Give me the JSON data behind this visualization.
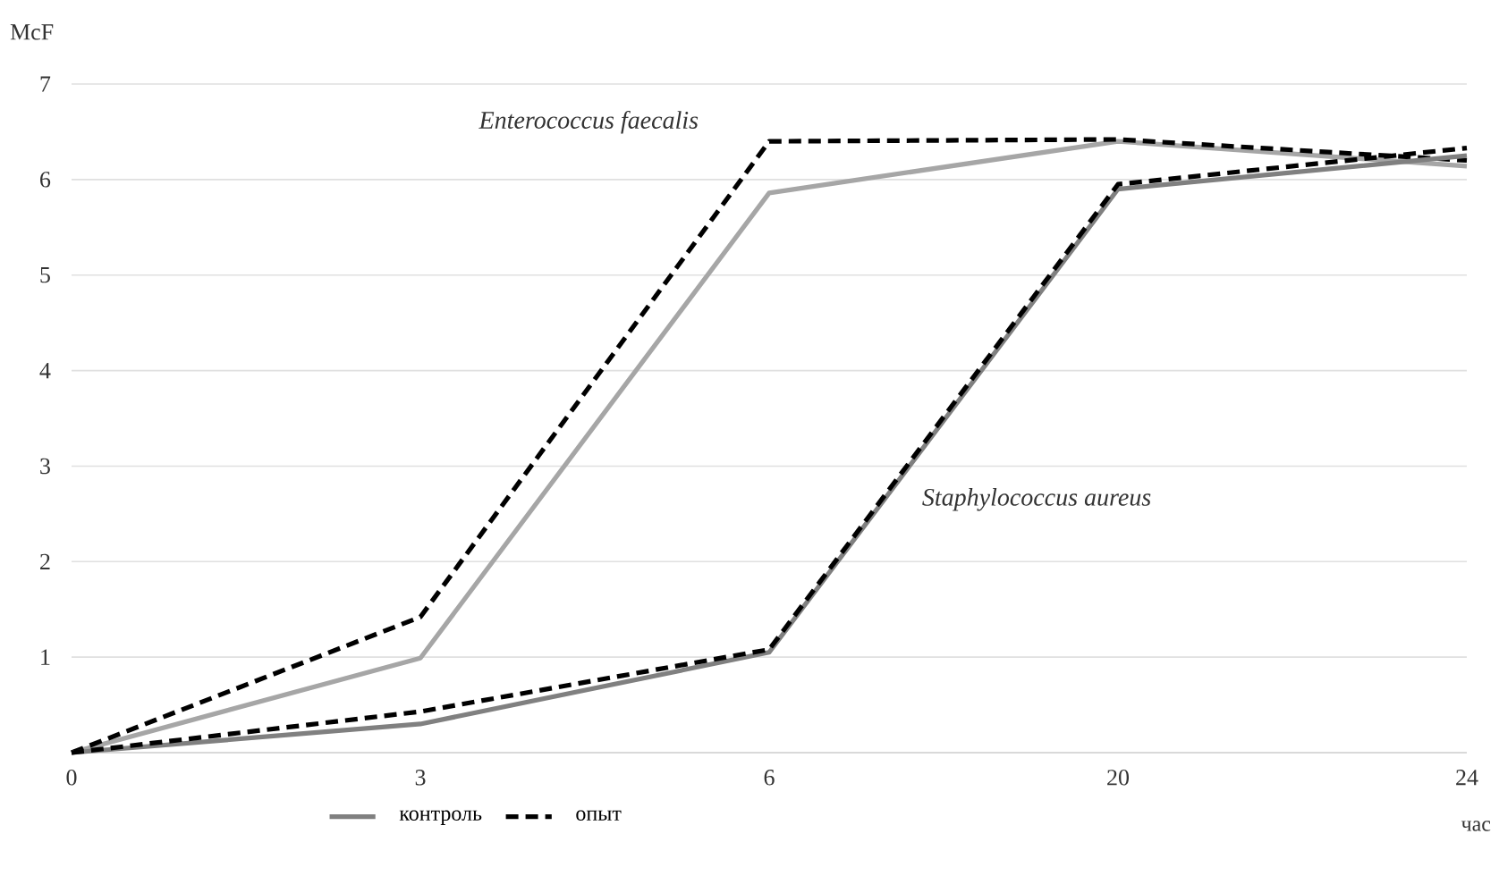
{
  "chart_data": {
    "type": "line",
    "xlabel": "час",
    "ylabel": "McF",
    "categories": [
      "0",
      "3",
      "6",
      "20",
      "24"
    ],
    "series": [
      {
        "color": "#a6a6a6",
        "line_style": "solid",
        "values": [
          0,
          0.99,
          5.86,
          6.4,
          6.14
        ]
      },
      {
        "color": "#000000",
        "line_style": "dashed",
        "values": [
          0,
          1.42,
          6.4,
          6.42,
          6.2
        ]
      },
      {
        "name": "контроль",
        "color": "#808080",
        "line_style": "solid",
        "values": [
          0,
          0.3,
          1.05,
          5.9,
          6.25
        ]
      },
      {
        "name": "опыт",
        "color": "#000000",
        "line_style": "dashed",
        "values": [
          0,
          0.43,
          1.08,
          5.95,
          6.33
        ]
      }
    ],
    "ylim": [
      0,
      7
    ],
    "yticks": [
      1,
      2,
      3,
      4,
      5,
      6,
      7
    ],
    "grid": "y",
    "legend": "bottom",
    "marker": "none",
    "annotations": [
      "*Enterococcus faecalis*",
      "*Staphylococcus aureus*"
    ]
  }
}
